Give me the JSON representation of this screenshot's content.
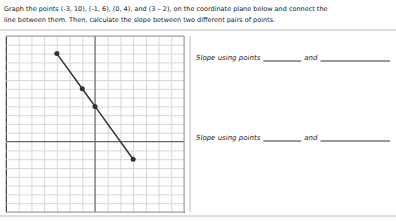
{
  "chart_data": {
    "type": "line",
    "title": "Graph the points (-3, 10), (-1, 6), (0, 4), and (3 – 2), on the coordinate plane below and connect the",
    "subtitle": "line between them.  Then, calculate the slope between two different pairs of points.",
    "x": [
      -3,
      -1,
      0,
      3
    ],
    "values": [
      10,
      6,
      4,
      -2
    ],
    "color": "#333333",
    "marker": "circle",
    "xlim": [
      -7,
      7
    ],
    "ylim": [
      -8,
      12
    ],
    "xticks": [
      -7,
      -6,
      -5,
      -4,
      -3,
      -2,
      -1,
      0,
      1,
      2,
      3,
      4,
      5,
      6,
      7
    ],
    "yticks": [
      -8,
      -7,
      -6,
      -5,
      -4,
      -3,
      -2,
      -1,
      0,
      1,
      2,
      3,
      4,
      5,
      6,
      7,
      8,
      9,
      10,
      11,
      12
    ],
    "grid": true,
    "tick_labels": false,
    "annotations": [
      "Slope using points",
      "and",
      "Slope using points",
      "and"
    ]
  }
}
